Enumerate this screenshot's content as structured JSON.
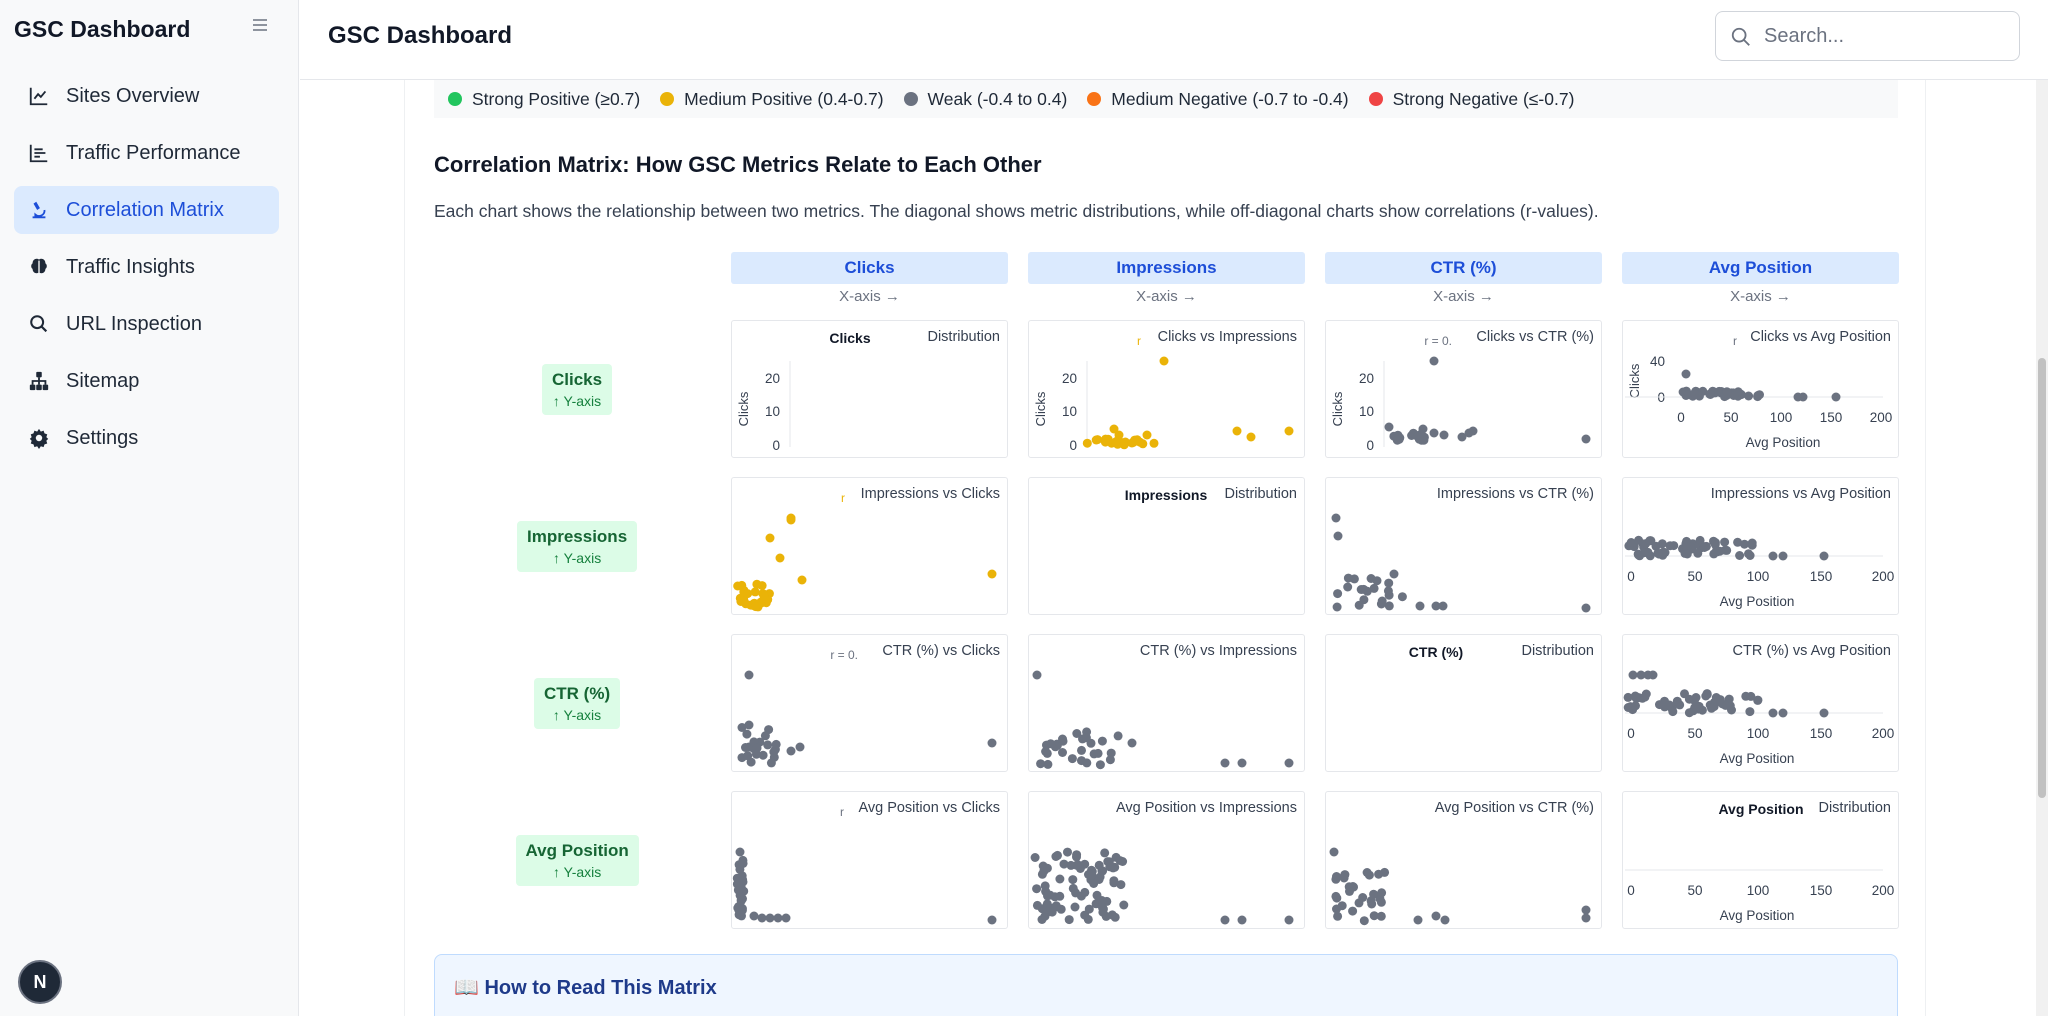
{
  "app": {
    "brand": "GSC Dashboard",
    "header_title": "GSC Dashboard",
    "avatar_letter": "N"
  },
  "search": {
    "placeholder": "Search..."
  },
  "nav": {
    "items": [
      {
        "label": "Sites Overview",
        "icon": "line-chart-icon",
        "active": false
      },
      {
        "label": "Traffic Performance",
        "icon": "bar-chart-icon",
        "active": false
      },
      {
        "label": "Correlation Matrix",
        "icon": "microscope-icon",
        "active": true
      },
      {
        "label": "Traffic Insights",
        "icon": "brain-icon",
        "active": false
      },
      {
        "label": "URL Inspection",
        "icon": "search-icon",
        "active": false
      },
      {
        "label": "Sitemap",
        "icon": "sitemap-icon",
        "active": false
      },
      {
        "label": "Settings",
        "icon": "gear-icon",
        "active": false
      }
    ]
  },
  "legend": [
    {
      "label": "Strong Positive (≥0.7)",
      "color": "#22c55e"
    },
    {
      "label": "Medium Positive (0.4-0.7)",
      "color": "#eab308"
    },
    {
      "label": "Weak (-0.4 to 0.4)",
      "color": "#6b7280"
    },
    {
      "label": "Medium Negative (-0.7 to -0.4)",
      "color": "#f97316"
    },
    {
      "label": "Strong Negative (≤-0.7)",
      "color": "#ef4444"
    }
  ],
  "section": {
    "title": "Correlation Matrix: How GSC Metrics Relate to Each Other",
    "description": "Each chart shows the relationship between two metrics. The diagonal shows metric distributions, while off-diagonal charts show correlations (r-values)."
  },
  "matrix": {
    "x_axis_hint": "X-axis →",
    "y_axis_hint": "↑ Y-axis",
    "metrics": [
      "Clicks",
      "Impressions",
      "CTR (%)",
      "Avg Position"
    ],
    "distribution_label": "Distribution",
    "vs_word": "vs"
  },
  "how_to_read": {
    "title": "📖 How to Read This Matrix"
  },
  "chart_data": {
    "type": "scatter",
    "title": "Correlation Matrix: How GSC Metrics Relate to Each Other",
    "metrics": [
      "Clicks",
      "Impressions",
      "CTR (%)",
      "Avg Position"
    ],
    "colors": {
      "medium_positive": "#eab308",
      "weak": "#6b7280"
    },
    "panels": [
      {
        "row": "Clicks",
        "col": "Clicks",
        "kind": "distribution",
        "title": "Distribution",
        "ylabel": "Clicks",
        "yticks": [
          0,
          10,
          20
        ]
      },
      {
        "row": "Clicks",
        "col": "Impressions",
        "kind": "scatter",
        "title": "Clicks vs Impressions",
        "r_label": "r",
        "color_class": "medium_positive",
        "ylabel": "Clicks",
        "yticks": [
          0,
          10,
          20
        ]
      },
      {
        "row": "Clicks",
        "col": "CTR (%)",
        "kind": "scatter",
        "title": "Clicks vs CTR (%)",
        "r_label": "r = 0.",
        "color_class": "weak",
        "ylabel": "Clicks",
        "yticks": [
          0,
          10,
          20
        ]
      },
      {
        "row": "Clicks",
        "col": "Avg Position",
        "kind": "scatter",
        "title": "Clicks vs Avg Position",
        "r_label": "r",
        "color_class": "weak",
        "ylabel": "Clicks",
        "yticks": [
          0,
          40
        ],
        "xlabel": "Avg Position",
        "xticks": [
          0,
          50,
          100,
          150,
          200
        ]
      },
      {
        "row": "Impressions",
        "col": "Clicks",
        "kind": "scatter",
        "title": "Impressions vs Clicks",
        "r_label": "r",
        "color_class": "medium_positive"
      },
      {
        "row": "Impressions",
        "col": "Impressions",
        "kind": "distribution",
        "title": "Distribution"
      },
      {
        "row": "Impressions",
        "col": "CTR (%)",
        "kind": "scatter",
        "title": "Impressions vs CTR (%)",
        "color_class": "weak"
      },
      {
        "row": "Impressions",
        "col": "Avg Position",
        "kind": "scatter",
        "title": "Impressions vs Avg Position",
        "color_class": "weak",
        "xlabel": "Avg Position",
        "xticks": [
          0,
          50,
          100,
          150,
          200
        ]
      },
      {
        "row": "CTR (%)",
        "col": "Clicks",
        "kind": "scatter",
        "title": "CTR (%) vs Clicks",
        "r_label": "r = 0.",
        "color_class": "weak"
      },
      {
        "row": "CTR (%)",
        "col": "Impressions",
        "kind": "scatter",
        "title": "CTR (%) vs Impressions",
        "color_class": "weak"
      },
      {
        "row": "CTR (%)",
        "col": "CTR (%)",
        "kind": "distribution",
        "title": "Distribution"
      },
      {
        "row": "CTR (%)",
        "col": "Avg Position",
        "kind": "scatter",
        "title": "CTR (%) vs Avg Position",
        "color_class": "weak",
        "xlabel": "Avg Position",
        "xticks": [
          0,
          50,
          100,
          150,
          200
        ]
      },
      {
        "row": "Avg Position",
        "col": "Clicks",
        "kind": "scatter",
        "title": "Avg Position vs Clicks",
        "r_label": "r",
        "color_class": "weak"
      },
      {
        "row": "Avg Position",
        "col": "Impressions",
        "kind": "scatter",
        "title": "Avg Position vs Impressions",
        "color_class": "weak"
      },
      {
        "row": "Avg Position",
        "col": "CTR (%)",
        "kind": "scatter",
        "title": "Avg Position vs CTR (%)",
        "color_class": "weak"
      },
      {
        "row": "Avg Position",
        "col": "Avg Position",
        "kind": "distribution",
        "title": "Distribution",
        "xlabel": "Avg Position",
        "xticks": [
          0,
          50,
          100,
          150,
          200
        ]
      }
    ]
  }
}
